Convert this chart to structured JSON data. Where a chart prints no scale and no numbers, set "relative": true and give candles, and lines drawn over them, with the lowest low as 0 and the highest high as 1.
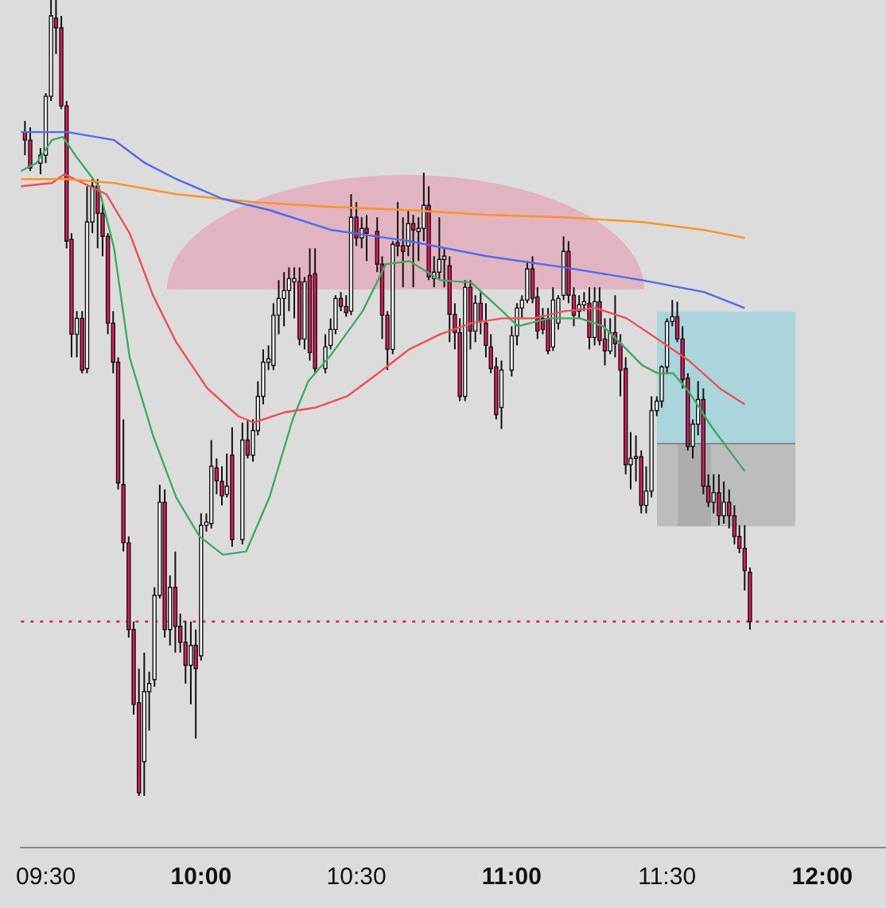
{
  "chart_data": {
    "type": "candlestick",
    "relative": true,
    "x": [
      9.433,
      9.45,
      9.483,
      9.5,
      9.517,
      9.533,
      9.55,
      9.567,
      9.583,
      9.6,
      9.617,
      9.633,
      9.65,
      9.667,
      9.683,
      9.7,
      9.717,
      9.733,
      9.75,
      9.767,
      9.783,
      9.8,
      9.817,
      9.833,
      9.85,
      9.867,
      9.883,
      9.9,
      9.917,
      9.933,
      9.95,
      9.967,
      9.983,
      10,
      10.017,
      10.033,
      10.05,
      10.067,
      10.083,
      10.1,
      10.133,
      10.15,
      10.167,
      10.183,
      10.2,
      10.217,
      10.233,
      10.25,
      10.267,
      10.283,
      10.3,
      10.317,
      10.333,
      10.35,
      10.367,
      10.4,
      10.417,
      10.433,
      10.45,
      10.467,
      10.483,
      10.5,
      10.517,
      10.533,
      10.567,
      10.583,
      10.6,
      10.617,
      10.633,
      10.65,
      10.667,
      10.683,
      10.7,
      10.717,
      10.733,
      10.75,
      10.767,
      10.783,
      10.8,
      10.817,
      10.833,
      10.85,
      10.867,
      10.883,
      10.9,
      10.917,
      10.933,
      10.95,
      10.967,
      11,
      11.017,
      11.033,
      11.05,
      11.067,
      11.083,
      11.1,
      11.117,
      11.133,
      11.15,
      11.167,
      11.183,
      11.2,
      11.217,
      11.233,
      11.25,
      11.267,
      11.283,
      11.3,
      11.317,
      11.333,
      11.35,
      11.367,
      11.383,
      11.4,
      11.417,
      11.433,
      11.45,
      11.467,
      11.483,
      11.5,
      11.517,
      11.533,
      11.55,
      11.567,
      11.583,
      11.6,
      11.617,
      11.633,
      11.65,
      11.667,
      11.683,
      11.7,
      11.717,
      11.733,
      11.75,
      11.767
    ],
    "ohlc": [
      [
        0.834,
        0.848,
        0.805,
        0.824
      ],
      [
        0.824,
        0.84,
        0.785,
        0.789
      ],
      [
        0.795,
        0.814,
        0.781,
        0.805
      ],
      [
        0.805,
        0.883,
        0.795,
        0.879
      ],
      [
        0.879,
        1,
        0.873,
        0.98
      ],
      [
        0.977,
        1,
        0.932,
        0.965
      ],
      [
        0.965,
        0.98,
        0.863,
        0.867
      ],
      [
        0.867,
        0.873,
        0.688,
        0.697
      ],
      [
        0.699,
        0.707,
        0.551,
        0.58
      ],
      [
        0.58,
        0.609,
        0.551,
        0.6
      ],
      [
        0.6,
        0.609,
        0.531,
        0.535
      ],
      [
        0.537,
        0.766,
        0.531,
        0.721
      ],
      [
        0.721,
        0.775,
        0.707,
        0.766
      ],
      [
        0.766,
        0.775,
        0.688,
        0.732
      ],
      [
        0.732,
        0.746,
        0.678,
        0.703
      ],
      [
        0.703,
        0.707,
        0.58,
        0.594
      ],
      [
        0.594,
        0.609,
        0.531,
        0.545
      ],
      [
        0.545,
        0.551,
        0.385,
        0.393
      ],
      [
        0.391,
        0.473,
        0.307,
        0.318
      ],
      [
        0.318,
        0.326,
        0.199,
        0.209
      ],
      [
        0.209,
        0.219,
        0.102,
        0.115
      ],
      [
        0.117,
        0.16,
        0,
        0.004
      ],
      [
        0.043,
        0.18,
        0,
        0.131
      ],
      [
        0.131,
        0.156,
        0.082,
        0.141
      ],
      [
        0.146,
        0.262,
        0.137,
        0.252
      ],
      [
        0.252,
        0.391,
        0.248,
        0.369
      ],
      [
        0.369,
        0.385,
        0.199,
        0.209
      ],
      [
        0.209,
        0.277,
        0.189,
        0.262
      ],
      [
        0.262,
        0.307,
        0.18,
        0.213
      ],
      [
        0.213,
        0.229,
        0.18,
        0.193
      ],
      [
        0.193,
        0.219,
        0.141,
        0.164
      ],
      [
        0.164,
        0.219,
        0.115,
        0.189
      ],
      [
        0.189,
        0.209,
        0.072,
        0.16
      ],
      [
        0.176,
        0.355,
        0.17,
        0.34
      ],
      [
        0.34,
        0.355,
        0.332,
        0.344
      ],
      [
        0.342,
        0.447,
        0.336,
        0.414
      ],
      [
        0.412,
        0.424,
        0.379,
        0.396
      ],
      [
        0.395,
        0.414,
        0.365,
        0.377
      ],
      [
        0.379,
        0.43,
        0.375,
        0.389
      ],
      [
        0.428,
        0.463,
        0.313,
        0.322
      ],
      [
        0.322,
        0.469,
        0.316,
        0.447
      ],
      [
        0.447,
        0.473,
        0.424,
        0.428
      ],
      [
        0.428,
        0.473,
        0.42,
        0.459
      ],
      [
        0.459,
        0.521,
        0.453,
        0.502
      ],
      [
        0.502,
        0.561,
        0.492,
        0.545
      ],
      [
        0.545,
        0.566,
        0.535,
        0.549
      ],
      [
        0.541,
        0.619,
        0.535,
        0.604
      ],
      [
        0.604,
        0.648,
        0.58,
        0.625
      ],
      [
        0.625,
        0.658,
        0.59,
        0.635
      ],
      [
        0.635,
        0.664,
        0.609,
        0.65
      ],
      [
        0.646,
        0.664,
        0.6,
        0.65
      ],
      [
        0.646,
        0.664,
        0.566,
        0.574
      ],
      [
        0.574,
        0.652,
        0.561,
        0.646
      ],
      [
        0.654,
        0.688,
        0.547,
        0.557
      ],
      [
        0.656,
        0.688,
        0.531,
        0.537
      ],
      [
        0.537,
        0.58,
        0.531,
        0.564
      ],
      [
        0.566,
        0.6,
        0.561,
        0.586
      ],
      [
        0.586,
        0.629,
        0.58,
        0.625
      ],
      [
        0.625,
        0.633,
        0.609,
        0.615
      ],
      [
        0.615,
        0.629,
        0.602,
        0.607
      ],
      [
        0.609,
        0.756,
        0.604,
        0.727
      ],
      [
        0.727,
        0.746,
        0.691,
        0.701
      ],
      [
        0.701,
        0.727,
        0.688,
        0.713
      ],
      [
        0.713,
        0.73,
        0.672,
        0.707
      ],
      [
        0.709,
        0.727,
        0.658,
        0.668
      ],
      [
        0.668,
        0.678,
        0.574,
        0.604
      ],
      [
        0.604,
        0.609,
        0.535,
        0.561
      ],
      [
        0.561,
        0.697,
        0.555,
        0.693
      ],
      [
        0.695,
        0.746,
        0.678,
        0.691
      ],
      [
        0.691,
        0.727,
        0.639,
        0.684
      ],
      [
        0.691,
        0.736,
        0.678,
        0.719
      ],
      [
        0.719,
        0.73,
        0.639,
        0.711
      ],
      [
        0.709,
        0.727,
        0.672,
        0.713
      ],
      [
        0.713,
        0.783,
        0.697,
        0.742
      ],
      [
        0.742,
        0.766,
        0.648,
        0.652
      ],
      [
        0.65,
        0.678,
        0.639,
        0.658
      ],
      [
        0.658,
        0.727,
        0.648,
        0.674
      ],
      [
        0.674,
        0.688,
        0.639,
        0.678
      ],
      [
        0.666,
        0.678,
        0.57,
        0.605
      ],
      [
        0.605,
        0.619,
        0.561,
        0.582
      ],
      [
        0.582,
        0.6,
        0.496,
        0.502
      ],
      [
        0.502,
        0.648,
        0.496,
        0.639
      ],
      [
        0.639,
        0.648,
        0.561,
        0.584
      ],
      [
        0.584,
        0.629,
        0.57,
        0.619
      ],
      [
        0.619,
        0.633,
        0.58,
        0.596
      ],
      [
        0.594,
        0.619,
        0.551,
        0.566
      ],
      [
        0.564,
        0.58,
        0.531,
        0.537
      ],
      [
        0.539,
        0.551,
        0.473,
        0.479
      ],
      [
        0.488,
        0.547,
        0.461,
        0.535
      ],
      [
        0.535,
        0.59,
        0.527,
        0.578
      ],
      [
        0.578,
        0.619,
        0.566,
        0.613
      ],
      [
        0.613,
        0.629,
        0.6,
        0.623
      ],
      [
        0.623,
        0.672,
        0.619,
        0.662
      ],
      [
        0.662,
        0.678,
        0.619,
        0.625
      ],
      [
        0.627,
        0.639,
        0.574,
        0.584
      ],
      [
        0.6,
        0.613,
        0.58,
        0.586
      ],
      [
        0.6,
        0.613,
        0.555,
        0.559
      ],
      [
        0.564,
        0.639,
        0.559,
        0.623
      ],
      [
        0.594,
        0.629,
        0.586,
        0.625
      ],
      [
        0.629,
        0.703,
        0.623,
        0.684
      ],
      [
        0.684,
        0.697,
        0.619,
        0.629
      ],
      [
        0.629,
        0.639,
        0.59,
        0.604
      ],
      [
        0.609,
        0.629,
        0.6,
        0.617
      ],
      [
        0.617,
        0.633,
        0.609,
        0.621
      ],
      [
        0.619,
        0.639,
        0.561,
        0.576
      ],
      [
        0.576,
        0.639,
        0.566,
        0.621
      ],
      [
        0.621,
        0.639,
        0.566,
        0.572
      ],
      [
        0.574,
        0.6,
        0.541,
        0.559
      ],
      [
        0.559,
        0.6,
        0.555,
        0.582
      ],
      [
        0.582,
        0.629,
        0.551,
        0.568
      ],
      [
        0.568,
        0.58,
        0.502,
        0.535
      ],
      [
        0.537,
        0.551,
        0.404,
        0.416
      ],
      [
        0.416,
        0.457,
        0.385,
        0.424
      ],
      [
        0.424,
        0.453,
        0.395,
        0.426
      ],
      [
        0.426,
        0.434,
        0.355,
        0.365
      ],
      [
        0.365,
        0.414,
        0.355,
        0.383
      ],
      [
        0.383,
        0.502,
        0.375,
        0.484
      ],
      [
        0.484,
        0.502,
        0.477,
        0.496
      ],
      [
        0.496,
        0.541,
        0.488,
        0.539
      ],
      [
        0.539,
        0.6,
        0.531,
        0.596
      ],
      [
        0.596,
        0.623,
        0.59,
        0.602
      ],
      [
        0.602,
        0.621,
        0.57,
        0.574
      ],
      [
        0.574,
        0.59,
        0.512,
        0.523
      ],
      [
        0.525,
        0.531,
        0.434,
        0.439
      ],
      [
        0.439,
        0.473,
        0.424,
        0.467
      ],
      [
        0.467,
        0.521,
        0.453,
        0.498
      ],
      [
        0.498,
        0.512,
        0.379,
        0.389
      ],
      [
        0.389,
        0.404,
        0.363,
        0.369
      ],
      [
        0.369,
        0.404,
        0.355,
        0.381
      ],
      [
        0.381,
        0.404,
        0.34,
        0.352
      ],
      [
        0.352,
        0.395,
        0.342,
        0.369
      ],
      [
        0.369,
        0.385,
        0.336,
        0.352
      ],
      [
        0.352,
        0.365,
        0.316,
        0.326
      ],
      [
        0.326,
        0.34,
        0.305,
        0.311
      ],
      [
        0.311,
        0.34,
        0.258,
        0.283
      ],
      [
        0.281,
        0.287,
        0.209,
        0.219
      ]
    ],
    "series": [
      {
        "type": "line",
        "color": "#4a6cf0",
        "x": [
          9.42,
          9.57,
          9.72,
          9.82,
          9.92,
          10.07,
          10.22,
          10.42,
          10.67,
          10.92,
          11.17,
          11.42,
          11.62,
          11.75
        ],
        "values": [
          0.834,
          0.834,
          0.824,
          0.795,
          0.775,
          0.75,
          0.736,
          0.711,
          0.697,
          0.678,
          0.664,
          0.648,
          0.633,
          0.613
        ]
      },
      {
        "type": "line",
        "color": "#ff9326",
        "x": [
          9.42,
          9.57,
          9.72,
          9.92,
          10.17,
          10.42,
          10.67,
          10.92,
          11.17,
          11.42,
          11.62,
          11.75
        ],
        "values": [
          0.775,
          0.775,
          0.77,
          0.756,
          0.746,
          0.74,
          0.736,
          0.73,
          0.727,
          0.721,
          0.711,
          0.701
        ]
      },
      {
        "type": "line",
        "color": "#f25050",
        "x": [
          9.42,
          9.52,
          9.56,
          9.62,
          9.695,
          9.77,
          9.845,
          9.92,
          10.02,
          10.12,
          10.17,
          10.27,
          10.37,
          10.47,
          10.57,
          10.67,
          10.77,
          10.87,
          10.97,
          11.07,
          11.17,
          11.27,
          11.37,
          11.47,
          11.57,
          11.67,
          11.75
        ],
        "values": [
          0.766,
          0.77,
          0.781,
          0.77,
          0.756,
          0.707,
          0.629,
          0.57,
          0.512,
          0.477,
          0.469,
          0.482,
          0.488,
          0.502,
          0.531,
          0.561,
          0.58,
          0.594,
          0.6,
          0.6,
          0.609,
          0.613,
          0.6,
          0.574,
          0.547,
          0.512,
          0.492
        ]
      },
      {
        "type": "line",
        "color": "#3cae5a",
        "x": [
          9.42,
          9.47,
          9.52,
          9.555,
          9.595,
          9.67,
          9.72,
          9.77,
          9.845,
          9.92,
          9.995,
          10.07,
          10.145,
          10.22,
          10.295,
          10.345,
          10.42,
          10.52,
          10.595,
          10.67,
          10.77,
          10.87,
          10.97,
          11.02,
          11.12,
          11.22,
          11.295,
          11.37,
          11.42,
          11.47,
          11.52,
          11.57,
          11.645,
          11.75
        ],
        "values": [
          0.785,
          0.795,
          0.824,
          0.828,
          0.805,
          0.766,
          0.688,
          0.551,
          0.453,
          0.375,
          0.326,
          0.303,
          0.307,
          0.375,
          0.473,
          0.521,
          0.555,
          0.609,
          0.668,
          0.672,
          0.648,
          0.645,
          0.609,
          0.59,
          0.6,
          0.6,
          0.59,
          0.561,
          0.541,
          0.531,
          0.531,
          0.508,
          0.463,
          0.408
        ]
      }
    ],
    "xlim": [
      9.42,
      12.205
    ],
    "xticks": [
      {
        "value": 9.5,
        "label": "09:30"
      },
      {
        "value": 10,
        "label": "10:00"
      },
      {
        "value": 10.5,
        "label": "10:30"
      },
      {
        "value": 11,
        "label": "11:00"
      },
      {
        "value": 11.5,
        "label": "11:30"
      },
      {
        "value": 12,
        "label": "12:00"
      }
    ],
    "ref_lines": [
      {
        "axis": "y",
        "value": 0.219,
        "color": "#e8175d",
        "line_style": "dotted"
      }
    ],
    "legend": false
  }
}
